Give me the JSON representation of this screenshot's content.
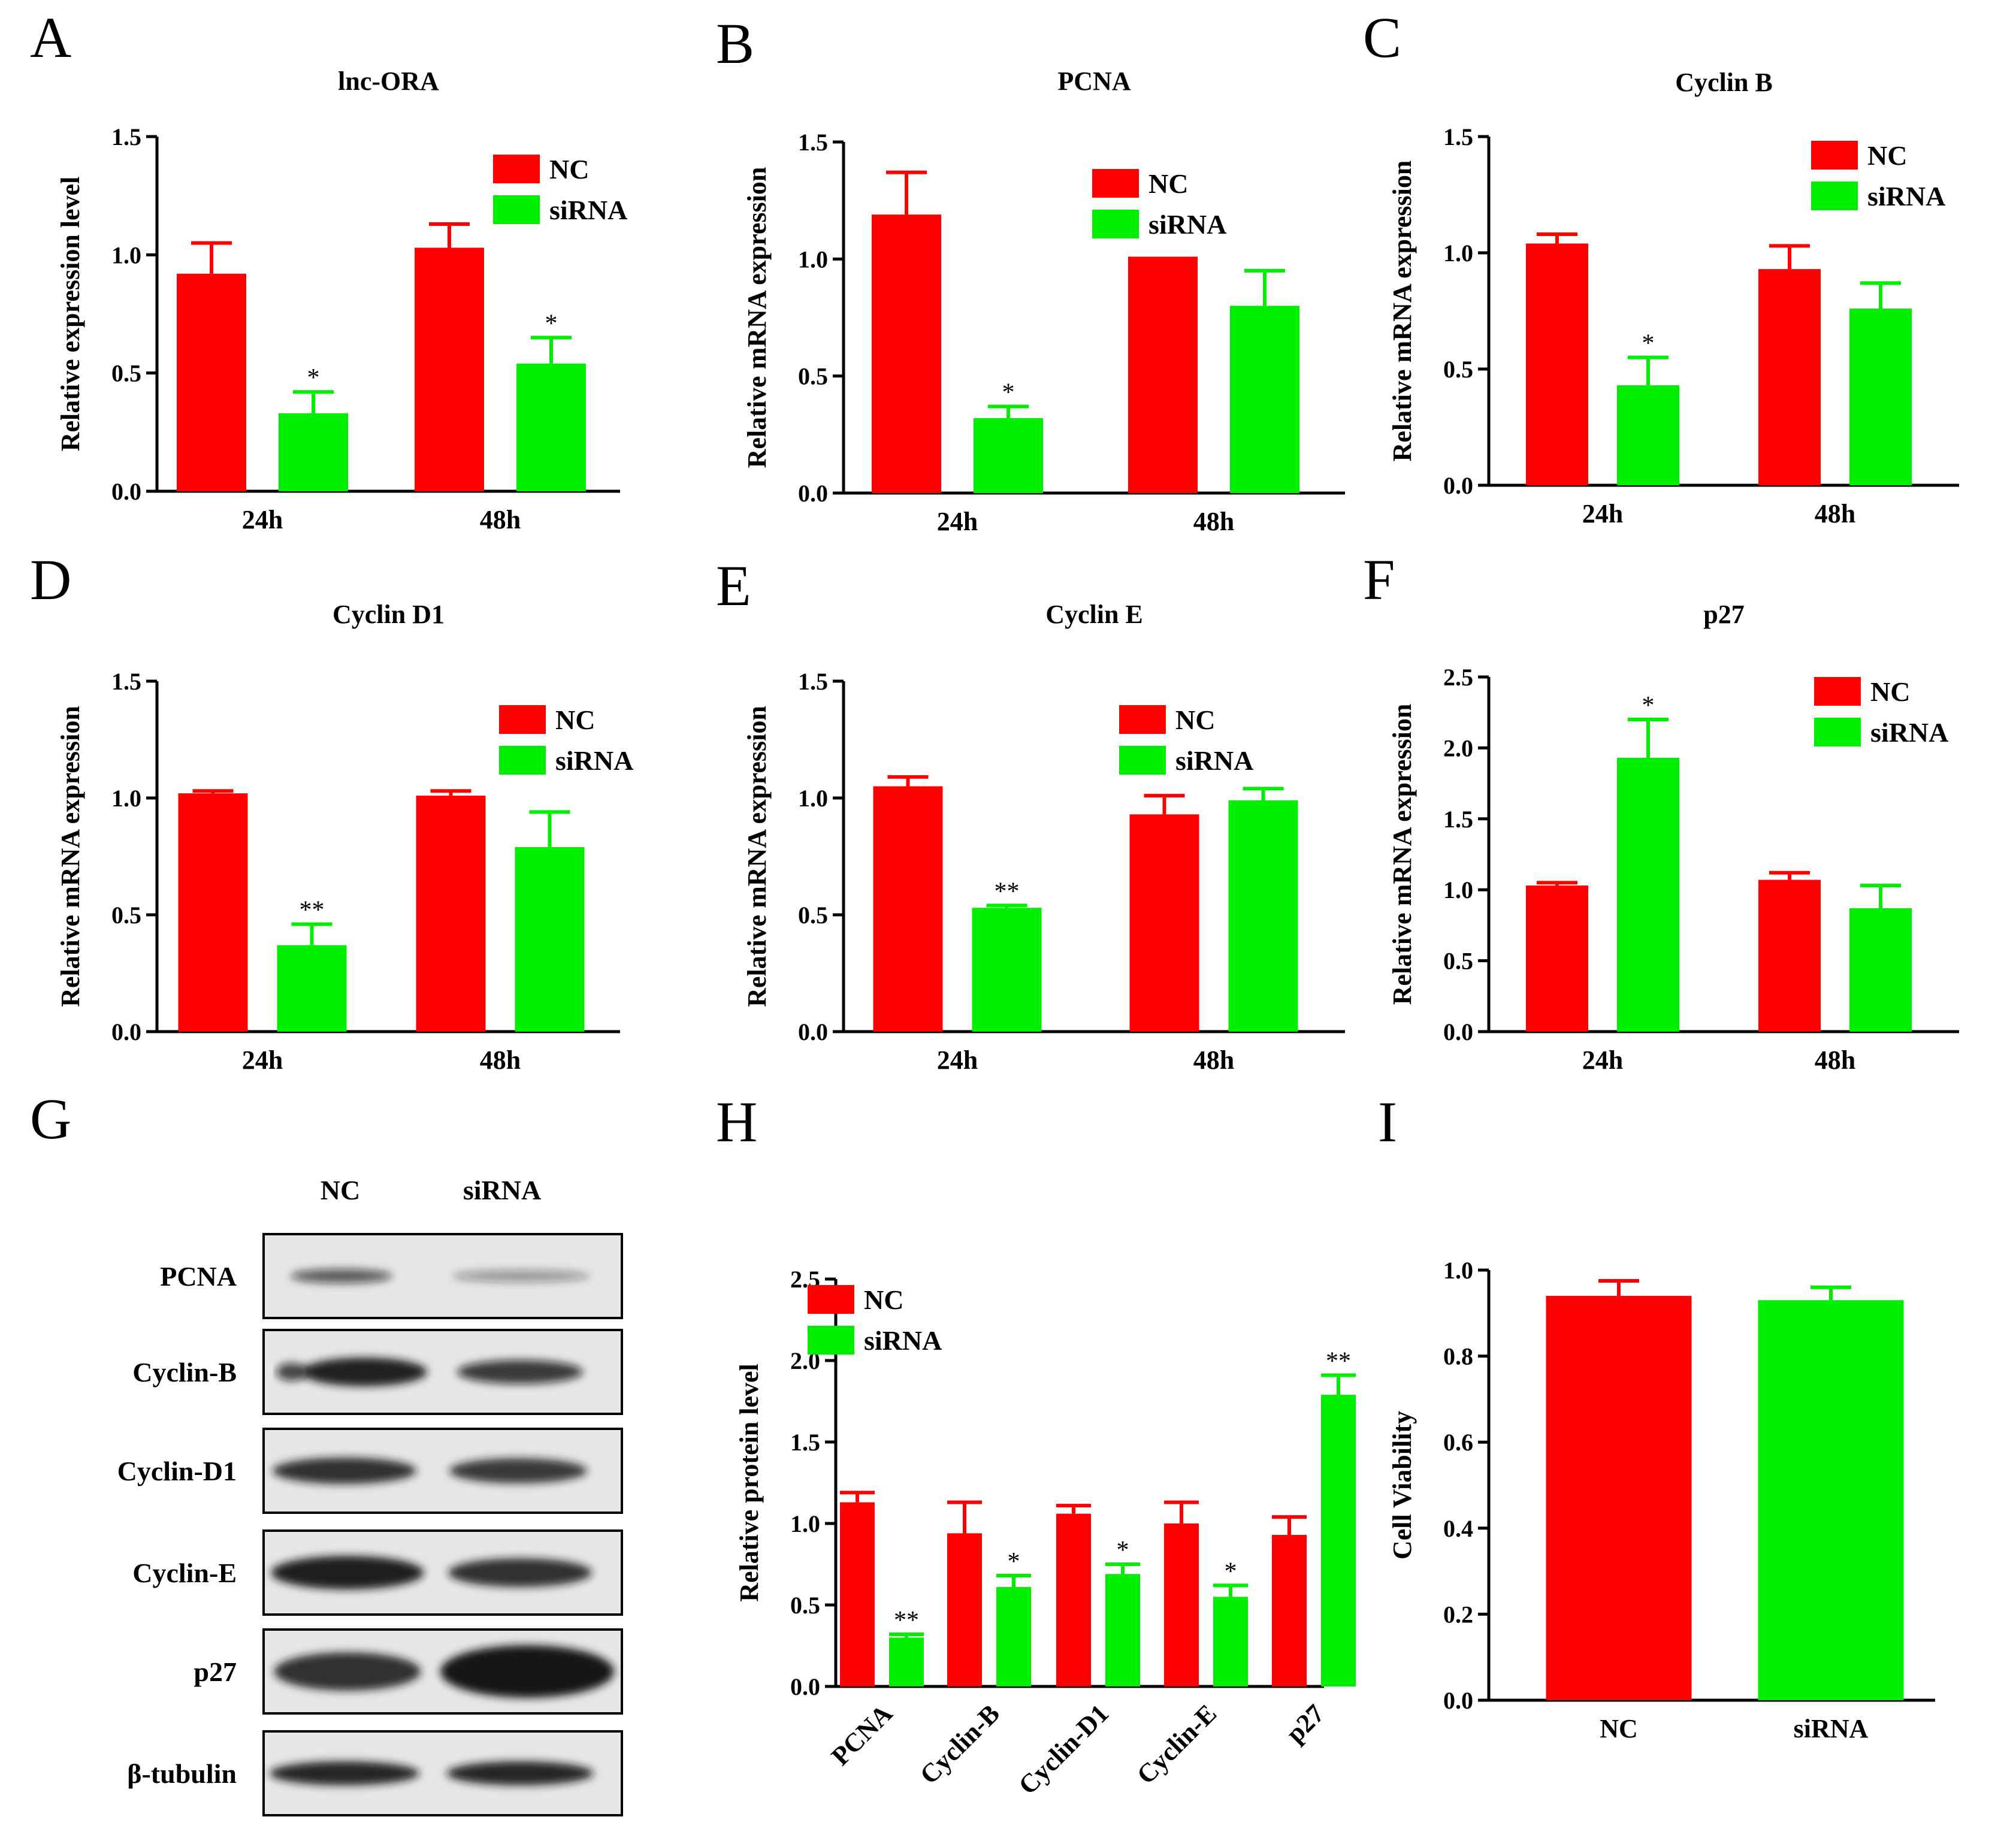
{
  "chart_data": [
    {
      "panel": "A",
      "type": "bar",
      "title": "lnc-ORA",
      "xlabel": "",
      "ylabel": "Relative expression level",
      "categories": [
        "24h",
        "48h"
      ],
      "ylim": [
        0,
        1.5
      ],
      "yticks": [
        "0.0",
        "0.5",
        "1.0",
        "1.5"
      ],
      "series": [
        {
          "name": "NC",
          "color": "#ff0000",
          "values": [
            0.92,
            1.03
          ],
          "errors": [
            0.13,
            0.1
          ],
          "sig": [
            "",
            ""
          ]
        },
        {
          "name": "siRNA",
          "color": "#00ee00",
          "values": [
            0.33,
            0.54
          ],
          "errors": [
            0.09,
            0.11
          ],
          "sig": [
            "*",
            "*"
          ]
        }
      ],
      "legend": "top-right"
    },
    {
      "panel": "B",
      "type": "bar",
      "title": "PCNA",
      "xlabel": "",
      "ylabel": "Relative mRNA expression",
      "categories": [
        "24h",
        "48h"
      ],
      "ylim": [
        0,
        1.5
      ],
      "yticks": [
        "0.0",
        "0.5",
        "1.0",
        "1.5"
      ],
      "series": [
        {
          "name": "NC",
          "color": "#ff0000",
          "values": [
            1.19,
            1.01
          ],
          "errors": [
            0.18,
            0.0
          ],
          "sig": [
            "",
            ""
          ]
        },
        {
          "name": "siRNA",
          "color": "#00ee00",
          "values": [
            0.32,
            0.8
          ],
          "errors": [
            0.05,
            0.15
          ],
          "sig": [
            "*",
            ""
          ]
        }
      ],
      "legend": "top-right"
    },
    {
      "panel": "C",
      "type": "bar",
      "title": "Cyclin B",
      "xlabel": "",
      "ylabel": "Relative mRNA expression",
      "categories": [
        "24h",
        "48h"
      ],
      "ylim": [
        0,
        1.5
      ],
      "yticks": [
        "0.0",
        "0.5",
        "1.0",
        "1.5"
      ],
      "series": [
        {
          "name": "NC",
          "color": "#ff0000",
          "values": [
            1.04,
            0.93
          ],
          "errors": [
            0.04,
            0.1
          ],
          "sig": [
            "",
            ""
          ]
        },
        {
          "name": "siRNA",
          "color": "#00ee00",
          "values": [
            0.43,
            0.76
          ],
          "errors": [
            0.12,
            0.11
          ],
          "sig": [
            "*",
            ""
          ]
        }
      ],
      "legend": "top-right"
    },
    {
      "panel": "D",
      "type": "bar",
      "title": "Cyclin D1",
      "xlabel": "",
      "ylabel": "Relative mRNA expression",
      "categories": [
        "24h",
        "48h"
      ],
      "ylim": [
        0,
        1.5
      ],
      "yticks": [
        "0.0",
        "0.5",
        "1.0",
        "1.5"
      ],
      "series": [
        {
          "name": "NC",
          "color": "#ff0000",
          "values": [
            1.02,
            1.01
          ],
          "errors": [
            0.01,
            0.02
          ],
          "sig": [
            "",
            ""
          ]
        },
        {
          "name": "siRNA",
          "color": "#00ee00",
          "values": [
            0.37,
            0.79
          ],
          "errors": [
            0.09,
            0.15
          ],
          "sig": [
            "**",
            ""
          ]
        }
      ],
      "legend": "top-right"
    },
    {
      "panel": "E",
      "type": "bar",
      "title": "Cyclin E",
      "xlabel": "",
      "ylabel": "Relative mRNA expression",
      "categories": [
        "24h",
        "48h"
      ],
      "ylim": [
        0,
        1.5
      ],
      "yticks": [
        "0.0",
        "0.5",
        "1.0",
        "1.5"
      ],
      "series": [
        {
          "name": "NC",
          "color": "#ff0000",
          "values": [
            1.05,
            0.93
          ],
          "errors": [
            0.04,
            0.08
          ],
          "sig": [
            "",
            ""
          ]
        },
        {
          "name": "siRNA",
          "color": "#00ee00",
          "values": [
            0.53,
            0.99
          ],
          "errors": [
            0.01,
            0.05
          ],
          "sig": [
            "**",
            ""
          ]
        }
      ],
      "legend": "top-right"
    },
    {
      "panel": "F",
      "type": "bar",
      "title": "p27",
      "xlabel": "",
      "ylabel": "Relative mRNA expression",
      "categories": [
        "24h",
        "48h"
      ],
      "ylim": [
        0,
        2.5
      ],
      "yticks": [
        "0.0",
        "0.5",
        "1.0",
        "1.5",
        "2.0",
        "2.5"
      ],
      "series": [
        {
          "name": "NC",
          "color": "#ff0000",
          "values": [
            1.03,
            1.07
          ],
          "errors": [
            0.02,
            0.05
          ],
          "sig": [
            "",
            ""
          ]
        },
        {
          "name": "siRNA",
          "color": "#00ee00",
          "values": [
            1.93,
            0.87
          ],
          "errors": [
            0.27,
            0.16
          ],
          "sig": [
            "*",
            ""
          ]
        }
      ],
      "legend": "top-right"
    },
    {
      "panel": "H",
      "type": "bar",
      "title": "",
      "xlabel": "",
      "ylabel": "Relative protein level",
      "categories": [
        "PCNA",
        "Cyclin-B",
        "Cyclin-D1",
        "Cyclin-E",
        "p27"
      ],
      "ylim": [
        0,
        2.5
      ],
      "yticks": [
        "0.0",
        "0.5",
        "1.0",
        "1.5",
        "2.0",
        "2.5"
      ],
      "series": [
        {
          "name": "NC",
          "color": "#ff0000",
          "values": [
            1.13,
            0.94,
            1.06,
            1.0,
            0.93
          ],
          "errors": [
            0.06,
            0.19,
            0.05,
            0.13,
            0.11
          ],
          "sig": [
            "",
            "",
            "",
            "",
            ""
          ]
        },
        {
          "name": "siRNA",
          "color": "#00ee00",
          "values": [
            0.3,
            0.61,
            0.69,
            0.55,
            1.79
          ],
          "errors": [
            0.02,
            0.07,
            0.06,
            0.07,
            0.12
          ],
          "sig": [
            "**",
            "*",
            "*",
            "*",
            "**"
          ]
        }
      ],
      "legend": "top-left"
    },
    {
      "panel": "I",
      "type": "bar",
      "title": "",
      "xlabel": "",
      "ylabel": "Cell Viability",
      "categories": [
        "NC",
        "siRNA"
      ],
      "ylim": [
        0,
        1.0
      ],
      "yticks": [
        "0.0",
        "0.2",
        "0.4",
        "0.6",
        "0.8",
        "1.0"
      ],
      "single": true,
      "series": [
        {
          "name": "Cell Viability",
          "colors": [
            "#ff0000",
            "#00ee00"
          ],
          "values": [
            0.94,
            0.93
          ],
          "errors": [
            0.035,
            0.03
          ]
        }
      ]
    }
  ],
  "blot": {
    "panel": "G",
    "lanes": [
      "NC",
      "siRNA"
    ],
    "rows": [
      "PCNA",
      "Cyclin-B",
      "Cyclin-D1",
      "Cyclin-E",
      "p27",
      "β-tubulin"
    ]
  },
  "panel_letters": [
    "A",
    "B",
    "C",
    "D",
    "E",
    "F",
    "G",
    "H",
    "I"
  ]
}
